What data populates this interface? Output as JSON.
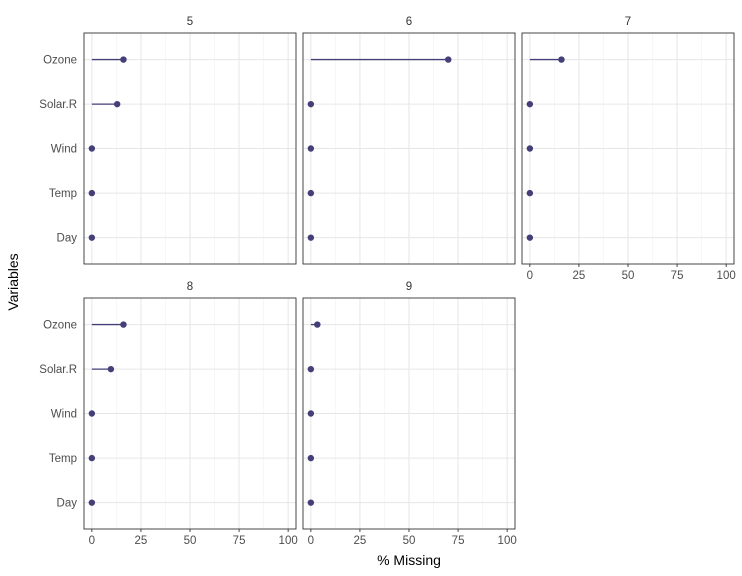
{
  "chart_data": {
    "type": "lollipop",
    "xlabel": "% Missing",
    "ylabel": "Variables",
    "xlim": [
      -4,
      104
    ],
    "x_ticks": [
      0,
      25,
      50,
      75,
      100
    ],
    "variables": [
      "Ozone",
      "Solar.R",
      "Wind",
      "Temp",
      "Day"
    ],
    "point_color": "#453f78",
    "grid": true,
    "panels": [
      {
        "label": "5",
        "values": [
          16.1,
          12.9,
          0,
          0,
          0
        ]
      },
      {
        "label": "6",
        "values": [
          70.0,
          0,
          0,
          0,
          0
        ]
      },
      {
        "label": "7",
        "values": [
          16.1,
          0,
          0,
          0,
          0
        ]
      },
      {
        "label": "8",
        "values": [
          16.1,
          9.7,
          0,
          0,
          0
        ]
      },
      {
        "label": "9",
        "values": [
          3.3,
          0,
          0,
          0,
          0
        ]
      }
    ]
  }
}
